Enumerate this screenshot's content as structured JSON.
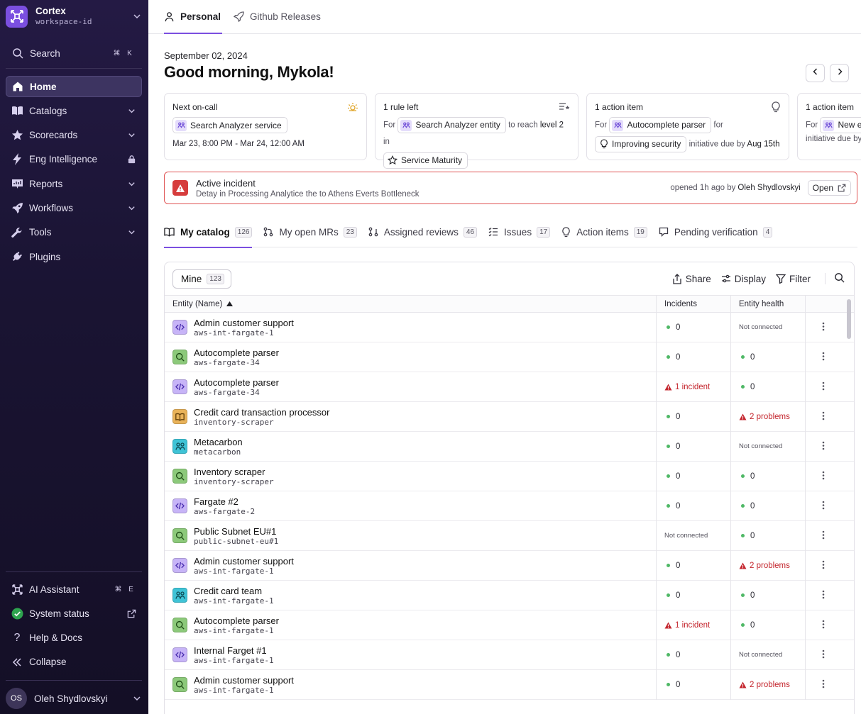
{
  "workspace": {
    "name": "Cortex",
    "id": "workspace-id"
  },
  "sidebar": {
    "search": {
      "label": "Search",
      "shortcut": [
        "⌘",
        "K"
      ]
    },
    "items": [
      {
        "label": "Home",
        "icon": "home-icon",
        "active": true
      },
      {
        "label": "Catalogs",
        "icon": "book-icon",
        "expandable": true
      },
      {
        "label": "Scorecards",
        "icon": "star-icon",
        "expandable": true
      },
      {
        "label": "Eng Intelligence",
        "icon": "bolt-icon",
        "locked": true
      },
      {
        "label": "Reports",
        "icon": "chart-icon",
        "expandable": true
      },
      {
        "label": "Workflows",
        "icon": "rocket-icon",
        "expandable": true
      },
      {
        "label": "Tools",
        "icon": "wrench-icon",
        "expandable": true
      },
      {
        "label": "Plugins",
        "icon": "plug-icon"
      }
    ],
    "bottom": [
      {
        "label": "AI Assistant",
        "icon": "ai-icon",
        "shortcut": [
          "⌘",
          "E"
        ]
      },
      {
        "label": "System status",
        "icon": "status-check-icon"
      },
      {
        "label": "Help & Docs",
        "icon": "help-icon"
      },
      {
        "label": "Collapse",
        "icon": "collapse-icon"
      }
    ],
    "user": {
      "initials": "OS",
      "name": "Oleh Shydlovskyi"
    }
  },
  "topTabs": [
    {
      "label": "Personal",
      "active": true
    },
    {
      "label": "Github Releases"
    }
  ],
  "header": {
    "date": "September 02, 2024",
    "greeting": "Good morning, Mykola!"
  },
  "cards": {
    "oncall": {
      "title": "Next on-call",
      "service": "Search Analyzer service",
      "time": "Mar 23, 8:00 PM - Mar 24, 12:00 AM"
    },
    "rule": {
      "title": "1 rule left",
      "for": "For",
      "entity": "Search Analyzer entity",
      "reach": "to reach",
      "level": "level 2",
      "in": "in",
      "scorecard": "Service Maturity"
    },
    "action": {
      "title": "1 action item",
      "for": "For",
      "entity": "Autocomplete parser",
      "for2": "for",
      "initiative": "Improving security",
      "due": "initiative due by",
      "date": "Aug 15th"
    },
    "action2": {
      "title": "1 action item",
      "for": "For",
      "entity": "New en",
      "due": "initiative due by"
    }
  },
  "incident": {
    "title": "Active incident",
    "description": "Detay in Processing Analytice the to Athens Everts Bottleneck",
    "opened": "opened 1h ago by",
    "by": "Oleh Shydlovskyi",
    "button": "Open"
  },
  "subTabs": [
    {
      "label": "My catalog",
      "count": "126",
      "icon": "book-open-icon",
      "active": true
    },
    {
      "label": "My open MRs",
      "count": "23",
      "icon": "merge-icon"
    },
    {
      "label": "Assigned reviews",
      "count": "46",
      "icon": "review-icon"
    },
    {
      "label": "Issues",
      "count": "17",
      "icon": "checklist-icon"
    },
    {
      "label": "Action items",
      "count": "19",
      "icon": "bulb-icon"
    },
    {
      "label": "Pending verification",
      "count": "4",
      "icon": "verify-icon"
    }
  ],
  "panel": {
    "filter": {
      "label": "Mine",
      "count": "123"
    },
    "actions": [
      "Share",
      "Display",
      "Filter"
    ],
    "columns": [
      "Entity (Name)",
      "Incidents",
      "Entity health"
    ]
  },
  "colors": {
    "code": "#c7b4f7",
    "search": "#8cc97a",
    "book": "#e9b35a",
    "team": "#3fc3d6",
    "accent": "#7b4fe0",
    "danger": "#c4262e"
  },
  "rows": [
    {
      "name": "Admin customer support",
      "tag": "aws-int-fargate-1",
      "type": "code",
      "incidents": {
        "kind": "ok",
        "text": "0"
      },
      "health": {
        "kind": "muted",
        "text": "Not connected"
      }
    },
    {
      "name": "Autocomplete parser",
      "tag": "aws-fargate-34",
      "type": "search",
      "incidents": {
        "kind": "ok",
        "text": "0"
      },
      "health": {
        "kind": "ok",
        "text": "0"
      }
    },
    {
      "name": "Autocomplete parser",
      "tag": "aws-fargate-34",
      "type": "code",
      "incidents": {
        "kind": "bad",
        "text": "1 incident"
      },
      "health": {
        "kind": "ok",
        "text": "0"
      }
    },
    {
      "name": "Credit card transaction processor",
      "tag": "inventory-scraper",
      "type": "book",
      "incidents": {
        "kind": "ok",
        "text": "0"
      },
      "health": {
        "kind": "bad",
        "text": "2 problems"
      }
    },
    {
      "name": "Metacarbon",
      "tag": "metacarbon",
      "type": "team",
      "incidents": {
        "kind": "ok",
        "text": "0"
      },
      "health": {
        "kind": "muted",
        "text": "Not connected"
      }
    },
    {
      "name": "Inventory scraper",
      "tag": "inventory-scraper",
      "type": "search",
      "incidents": {
        "kind": "ok",
        "text": "0"
      },
      "health": {
        "kind": "ok",
        "text": "0"
      }
    },
    {
      "name": "Fargate #2",
      "tag": "aws-fargate-2",
      "type": "code",
      "incidents": {
        "kind": "ok",
        "text": "0"
      },
      "health": {
        "kind": "ok",
        "text": "0"
      }
    },
    {
      "name": "Public Subnet EU#1",
      "tag": "public-subnet-eu#1",
      "type": "search",
      "incidents": {
        "kind": "muted",
        "text": "Not connected"
      },
      "health": {
        "kind": "ok",
        "text": "0"
      }
    },
    {
      "name": "Admin customer support",
      "tag": "aws-int-fargate-1",
      "type": "code",
      "incidents": {
        "kind": "ok",
        "text": "0"
      },
      "health": {
        "kind": "bad",
        "text": "2 problems"
      }
    },
    {
      "name": "Credit card team",
      "tag": "aws-int-fargate-1",
      "type": "team",
      "incidents": {
        "kind": "ok",
        "text": "0"
      },
      "health": {
        "kind": "ok",
        "text": "0"
      }
    },
    {
      "name": "Autocomplete parser",
      "tag": "aws-int-fargate-1",
      "type": "search",
      "incidents": {
        "kind": "bad",
        "text": "1 incident"
      },
      "health": {
        "kind": "ok",
        "text": "0"
      }
    },
    {
      "name": "Internal Farget #1",
      "tag": "aws-int-fargate-1",
      "type": "code",
      "incidents": {
        "kind": "ok",
        "text": "0"
      },
      "health": {
        "kind": "muted",
        "text": "Not connected"
      }
    },
    {
      "name": "Admin customer support",
      "tag": "aws-int-fargate-1",
      "type": "search",
      "incidents": {
        "kind": "ok",
        "text": "0"
      },
      "health": {
        "kind": "bad",
        "text": "2 problems"
      }
    }
  ]
}
